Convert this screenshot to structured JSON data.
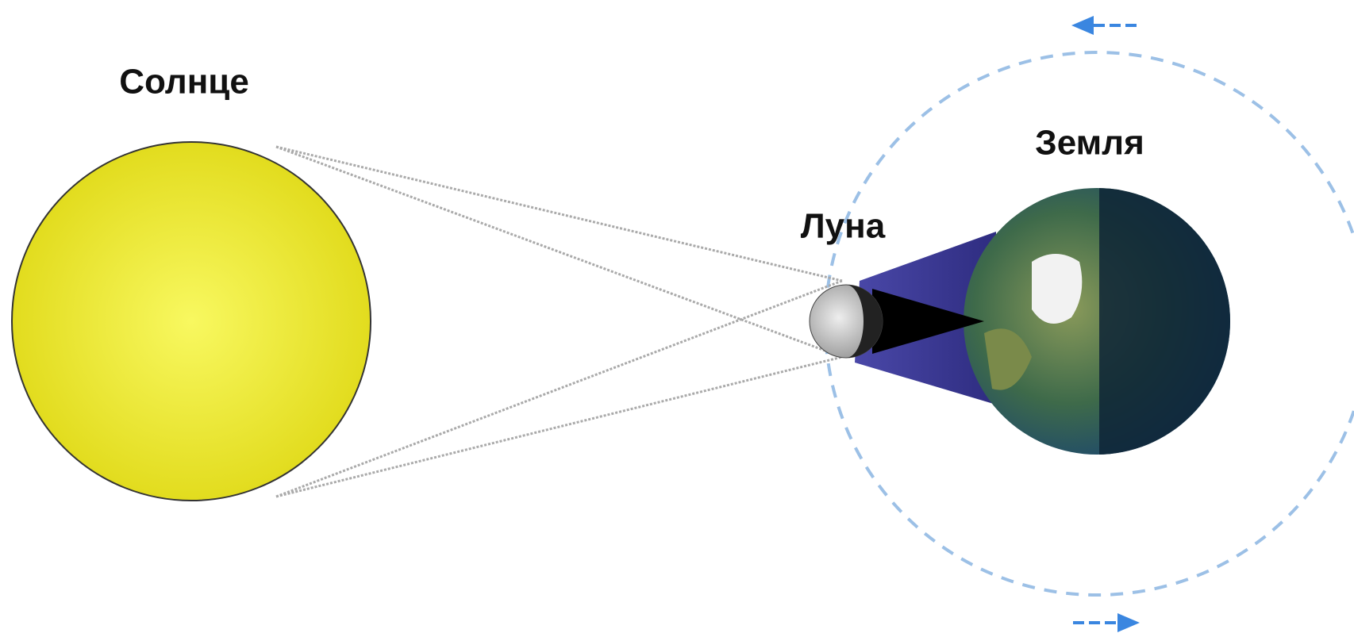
{
  "labels": {
    "sun": "Солнце",
    "moon": "Луна",
    "earth": "Земля"
  }
}
